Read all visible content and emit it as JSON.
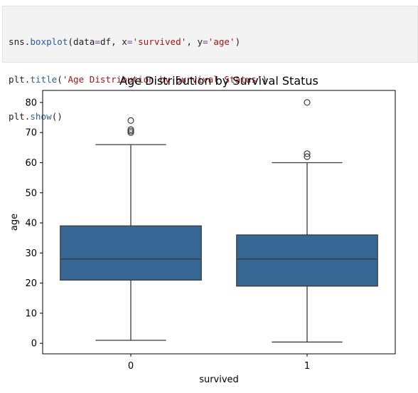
{
  "code_cell": {
    "line1": {
      "obj": "sns",
      "dot": ".",
      "fn": "boxplot",
      "open": "(",
      "k1": "data",
      "eq1": "=",
      "v1": "df",
      "sep1": ", ",
      "k2": "x",
      "eq2": "=",
      "v2": "'survived'",
      "sep2": ", ",
      "k3": "y",
      "eq3": "=",
      "v3": "'age'",
      "close": ")"
    },
    "line2": {
      "obj": "plt",
      "dot": ".",
      "fn": "title",
      "open": "(",
      "arg": "'Age Distribution by Survival Status'",
      "close": ")"
    },
    "line3": {
      "obj": "plt",
      "dot": ".",
      "fn": "show",
      "call": "()"
    }
  },
  "chart_data": {
    "type": "box",
    "title": "Age Distribution by Survival Status",
    "xlabel": "survived",
    "ylabel": "age",
    "categories": [
      "0",
      "1"
    ],
    "ylim": [
      -3.5,
      84
    ],
    "yticks": [
      0,
      10,
      20,
      30,
      40,
      50,
      60,
      70,
      80
    ],
    "box_color": "#376895",
    "line_color": "#3a3a3a",
    "boxes": [
      {
        "category": "0",
        "whisker_low": 1,
        "q1": 21,
        "median": 28,
        "q3": 39,
        "whisker_high": 66,
        "outliers": [
          70,
          70.5,
          71,
          74
        ]
      },
      {
        "category": "1",
        "whisker_low": 0.42,
        "q1": 19,
        "median": 28,
        "q3": 36,
        "whisker_high": 60,
        "outliers": [
          62,
          63,
          80
        ]
      }
    ]
  }
}
